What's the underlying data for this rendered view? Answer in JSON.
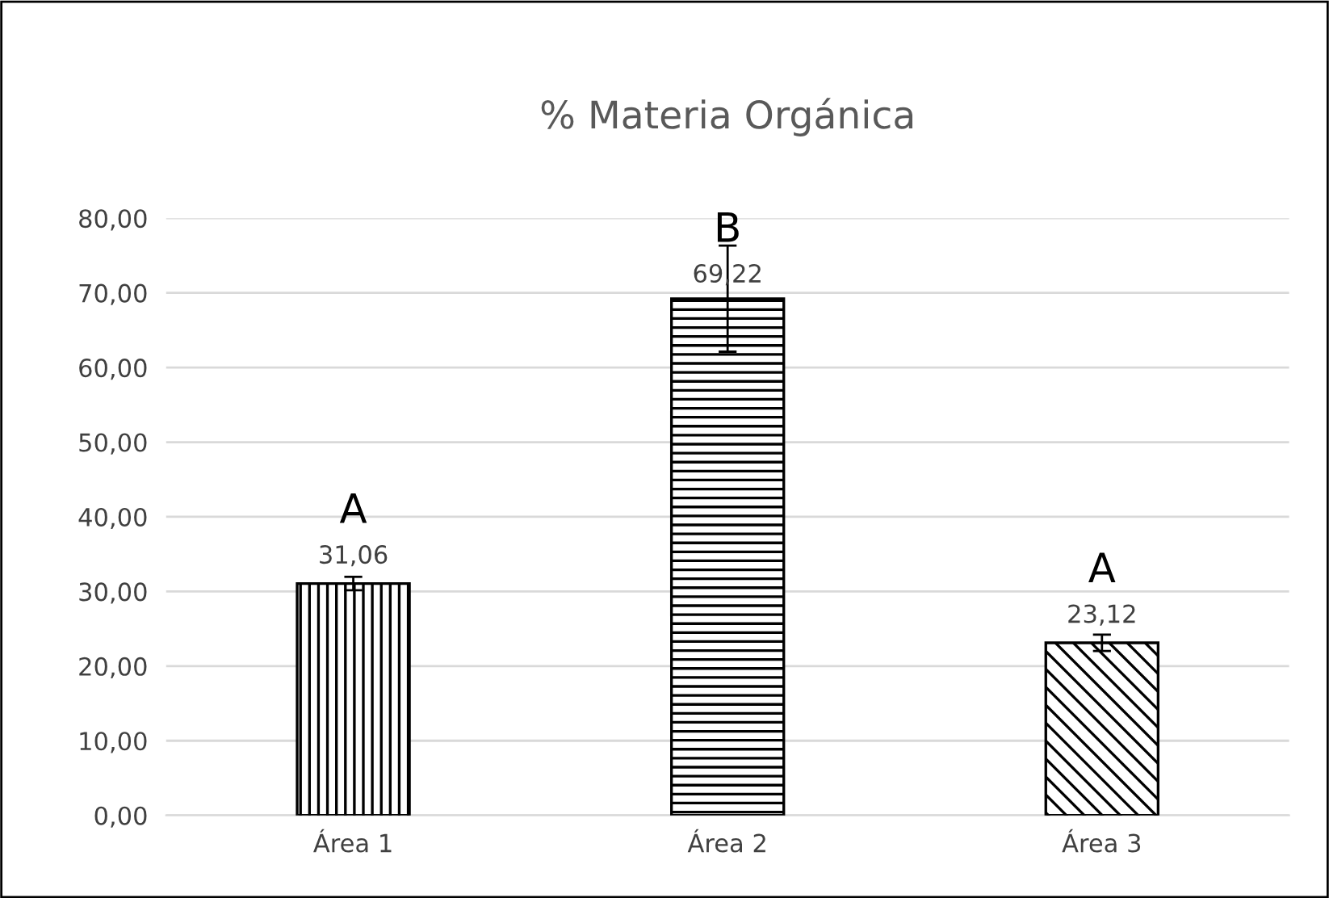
{
  "chart_data": {
    "type": "bar",
    "title": "% Materia Orgánica",
    "categories": [
      "Área 1",
      "Área 2",
      "Área 3"
    ],
    "values": [
      31.06,
      69.22,
      23.12
    ],
    "errors": [
      0.9,
      7.1,
      1.1
    ],
    "colors": [
      "#000000",
      "#000000",
      "#000000"
    ],
    "value_labels": [
      "31,06",
      "69,22",
      "23,12"
    ],
    "ylim": [
      0,
      80
    ],
    "yticks": [
      {
        "value": 0,
        "label": "0,00"
      },
      {
        "value": 10,
        "label": "10,00"
      },
      {
        "value": 20,
        "label": "20,00"
      },
      {
        "value": 30,
        "label": "30,00"
      },
      {
        "value": 40,
        "label": "40,00"
      },
      {
        "value": 50,
        "label": "50,00"
      },
      {
        "value": 60,
        "label": "60,00"
      },
      {
        "value": 70,
        "label": "70,00"
      },
      {
        "value": 80,
        "label": "80,00"
      }
    ],
    "grid": "y",
    "annotations": [
      "A",
      "B",
      "A"
    ]
  }
}
